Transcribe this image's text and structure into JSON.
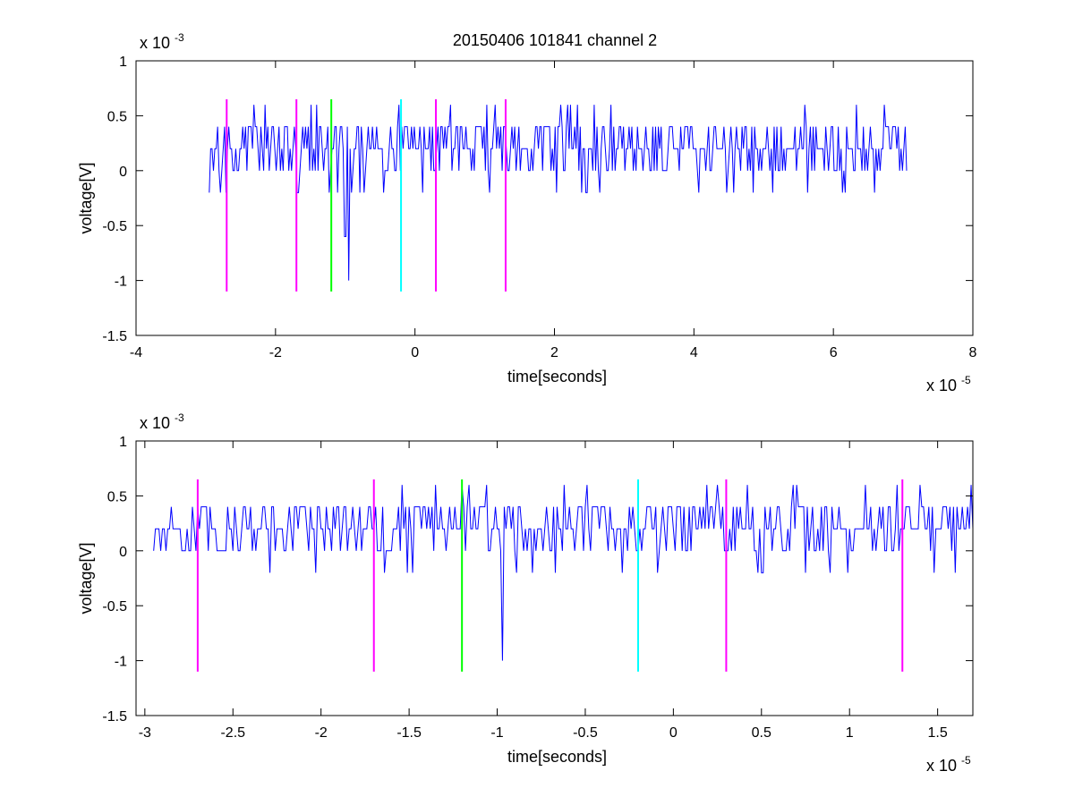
{
  "title": "20150406 101841 channel 2",
  "colors": {
    "signal": "#0000ff",
    "marker_magenta": "#ff00ff",
    "marker_green": "#00ff00",
    "marker_cyan": "#00ffff",
    "axes": "#000000",
    "background": "#ffffff"
  },
  "chart_data": [
    {
      "type": "line",
      "title": "20150406 101841 channel 2",
      "xlabel": "time[seconds]",
      "ylabel": "voltage[V]",
      "x_exponent": "x 10",
      "x_exponent_power": "-5",
      "y_exponent": "x 10",
      "y_exponent_power": "-3",
      "xlim": [
        -4,
        8
      ],
      "ylim": [
        -1.5,
        1
      ],
      "xticks": [
        "-4",
        "-2",
        "0",
        "2",
        "4",
        "6",
        "8"
      ],
      "yticks": [
        "1",
        "0.5",
        "0",
        "-0.5",
        "-1",
        "-1.5"
      ],
      "grid": false,
      "x_range_of_signal": [
        -2.95,
        7.05
      ],
      "signal_levels": [
        -0.2,
        0,
        0.2,
        0.4,
        0.6
      ],
      "spikes": [
        {
          "x": -0.95,
          "y": -1.0
        },
        {
          "x": -1.0,
          "y": -0.6
        }
      ],
      "markers": [
        {
          "x": -2.7,
          "color": "magenta",
          "ymin": -1.1,
          "ymax": 0.65
        },
        {
          "x": -1.7,
          "color": "magenta",
          "ymin": -1.1,
          "ymax": 0.65
        },
        {
          "x": -1.2,
          "color": "green",
          "ymin": -1.1,
          "ymax": 0.65
        },
        {
          "x": -0.2,
          "color": "cyan",
          "ymin": -1.1,
          "ymax": 0.65
        },
        {
          "x": 0.3,
          "color": "magenta",
          "ymin": -1.1,
          "ymax": 0.65
        },
        {
          "x": 1.3,
          "color": "magenta",
          "ymin": -1.1,
          "ymax": 0.65
        }
      ]
    },
    {
      "type": "line",
      "title": "",
      "xlabel": "time[seconds]",
      "ylabel": "voltage[V]",
      "x_exponent": "x 10",
      "x_exponent_power": "-5",
      "y_exponent": "x 10",
      "y_exponent_power": "-3",
      "xlim": [
        -3.05,
        1.7
      ],
      "ylim": [
        -1.5,
        1
      ],
      "xticks": [
        "-3",
        "-2.5",
        "-2",
        "-1.5",
        "-1",
        "-0.5",
        "0",
        "0.5",
        "1",
        "1.5"
      ],
      "yticks": [
        "1",
        "0.5",
        "0",
        "-0.5",
        "-1",
        "-1.5"
      ],
      "grid": false,
      "x_range_of_signal": [
        -2.95,
        1.7
      ],
      "signal_levels": [
        -0.2,
        0,
        0.2,
        0.4,
        0.6
      ],
      "spikes": [
        {
          "x": -0.97,
          "y": -1.0
        }
      ],
      "markers": [
        {
          "x": -2.7,
          "color": "magenta",
          "ymin": -1.1,
          "ymax": 0.65
        },
        {
          "x": -1.7,
          "color": "magenta",
          "ymin": -1.1,
          "ymax": 0.65
        },
        {
          "x": -1.2,
          "color": "green",
          "ymin": -1.1,
          "ymax": 0.65
        },
        {
          "x": -0.2,
          "color": "cyan",
          "ymin": -1.1,
          "ymax": 0.65
        },
        {
          "x": 0.3,
          "color": "magenta",
          "ymin": -1.1,
          "ymax": 0.65
        },
        {
          "x": 1.3,
          "color": "magenta",
          "ymin": -1.1,
          "ymax": 0.65
        }
      ]
    }
  ]
}
